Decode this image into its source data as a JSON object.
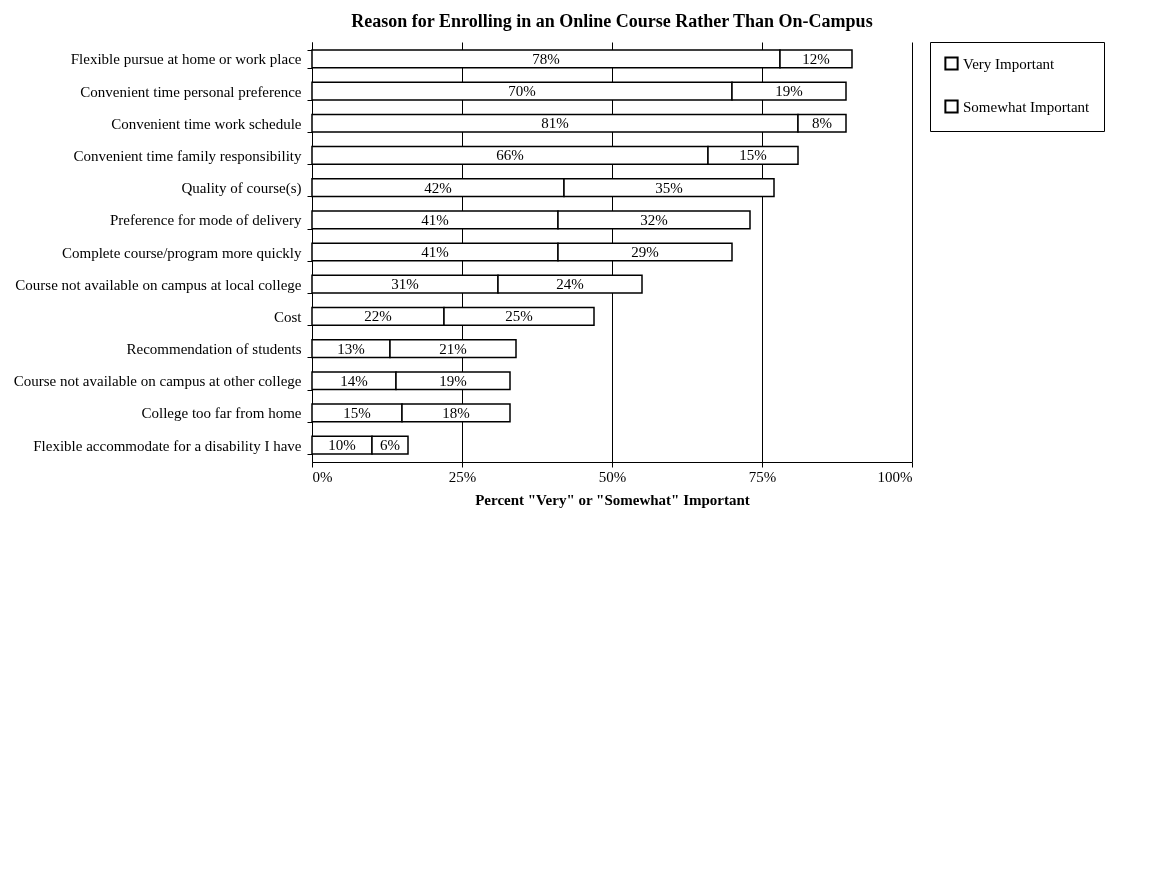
{
  "chart_data": {
    "type": "bar",
    "orientation": "horizontal",
    "stacked": true,
    "title": "Reason for Enrolling in an Online Course Rather Than On-Campus",
    "xlabel": "Percent \"Very\" or \"Somewhat\" Important",
    "categories": [
      "Flexible pursue at home or work place",
      "Convenient time personal preference",
      "Convenient time work schedule",
      "Convenient time family responsibility",
      "Quality of course(s)",
      "Preference for mode of delivery",
      "Complete course/program more quickly",
      "Course not available on campus at local college",
      "Cost",
      "Recommendation of students",
      "Course not available on campus at other college",
      "College too far from home",
      "Flexible accommodate for a disability I have"
    ],
    "series": [
      {
        "name": "Very Important",
        "color": "#ffffff",
        "values": [
          78,
          70,
          81,
          66,
          42,
          41,
          41,
          31,
          22,
          13,
          14,
          15,
          10
        ],
        "value_labels": [
          "78%",
          "70%",
          "81%",
          "66%",
          "42%",
          "41%",
          "41%",
          "31%",
          "22%",
          "13%",
          "14%",
          "15%",
          "10%"
        ]
      },
      {
        "name": "Somewhat Important",
        "color": "#ffffff",
        "values": [
          12,
          19,
          8,
          15,
          35,
          32,
          29,
          24,
          25,
          21,
          19,
          18,
          6
        ],
        "value_labels": [
          "12%",
          "19%",
          "8%",
          "15%",
          "35%",
          "32%",
          "29%",
          "24%",
          "25%",
          "21%",
          "19%",
          "18%",
          "6%"
        ]
      }
    ],
    "xlim": [
      0,
      100
    ],
    "xticks": [
      {
        "value": 0,
        "label": "0%"
      },
      {
        "value": 25,
        "label": "25%"
      },
      {
        "value": 50,
        "label": "50%"
      },
      {
        "value": 75,
        "label": "75%"
      },
      {
        "value": 100,
        "label": "100%"
      }
    ],
    "grid": "x",
    "legend": "right"
  }
}
